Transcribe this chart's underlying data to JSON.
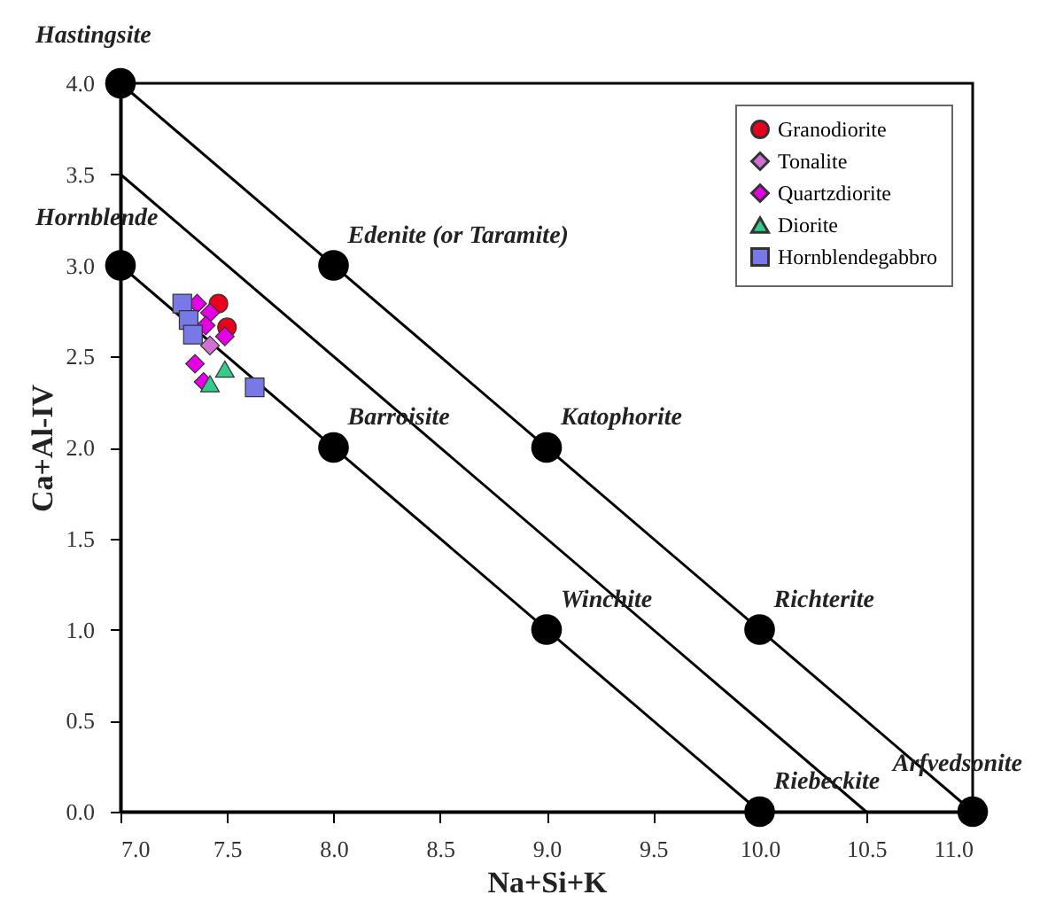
{
  "chart_data": {
    "type": "scatter",
    "xlabel": "Na+Si+K",
    "ylabel": "Ca+Al-IV",
    "xlim": [
      7,
      11
    ],
    "ylim": [
      0,
      4
    ],
    "xticks": [
      {
        "value": 7,
        "label": "7.0"
      },
      7.5,
      {
        "value": 8,
        "label": "8.0"
      },
      8.5,
      {
        "value": 9,
        "label": "9.0"
      },
      9.5,
      {
        "value": 10,
        "label": "10.0"
      },
      10.5,
      {
        "value": 11,
        "label": "11.0"
      }
    ],
    "yticks": [
      {
        "value": 0,
        "label": "0.0"
      },
      0.5,
      {
        "value": 1,
        "label": "1.0"
      },
      1.5,
      {
        "value": 2,
        "label": "2.0"
      },
      2.5,
      {
        "value": 3,
        "label": "3.0"
      },
      3.5,
      {
        "value": 4,
        "label": "4.0"
      }
    ],
    "grid": false,
    "legend": "top right",
    "series": [
      {
        "type": "line",
        "color": "#000000",
        "marker": "none",
        "line_style": "solid",
        "x": [
          7,
          11
        ],
        "values": [
          4,
          0
        ]
      },
      {
        "type": "line",
        "color": "#000000",
        "marker": "none",
        "line_style": "solid",
        "x": [
          7,
          10.5
        ],
        "values": [
          3.5,
          0
        ]
      },
      {
        "type": "line",
        "color": "#000000",
        "marker": "none",
        "line_style": "solid",
        "x": [
          7,
          10
        ],
        "values": [
          3,
          0
        ]
      },
      {
        "color": "#000000",
        "marker": "circle",
        "x": [
          7,
          7,
          8,
          8,
          9,
          9,
          10,
          10,
          11
        ],
        "values": [
          4,
          3,
          3,
          2,
          2,
          1,
          1,
          0,
          0
        ]
      },
      {
        "name": "Granodiorite",
        "color": "#e8001c",
        "marker": "circle",
        "x": [
          7.46,
          7.5
        ],
        "values": [
          2.79,
          2.66
        ]
      },
      {
        "name": "Tonalite",
        "color": "#d070d0",
        "marker": "diamond",
        "x": [
          7.42
        ],
        "values": [
          2.56
        ]
      },
      {
        "name": "Quartzdiorite",
        "color": "#e600e6",
        "marker": "diamond",
        "x": [
          7.36,
          7.42,
          7.49,
          7.35,
          7.39,
          7.4
        ],
        "values": [
          2.79,
          2.74,
          2.61,
          2.46,
          2.36,
          2.67
        ]
      },
      {
        "name": "Diorite",
        "color": "#33cc88",
        "marker": "triangle",
        "x": [
          7.49,
          7.42
        ],
        "values": [
          2.43,
          2.35
        ]
      },
      {
        "name": "Hornblendegabbro",
        "color": "#7878e6",
        "marker": "square",
        "x": [
          7.29,
          7.32,
          7.34,
          7.63
        ],
        "values": [
          2.79,
          2.7,
          2.62,
          2.33
        ]
      }
    ],
    "annotations": [
      {
        "text": "Hastingsite",
        "x": 7,
        "y": 4
      },
      {
        "text": "Hornblende",
        "x": 7,
        "y": 3
      },
      {
        "text": "Edenite (or Taramite)",
        "x": 8,
        "y": 3
      },
      {
        "text": "Barroisite",
        "x": 8,
        "y": 2
      },
      {
        "text": "Katophorite",
        "x": 9,
        "y": 2
      },
      {
        "text": "Winchite",
        "x": 9,
        "y": 1
      },
      {
        "text": "Richterite",
        "x": 10,
        "y": 1
      },
      {
        "text": "Riebeckite",
        "x": 10,
        "y": 0
      },
      {
        "text": "Arfvedsonite",
        "x": 11,
        "y": 0
      }
    ]
  }
}
